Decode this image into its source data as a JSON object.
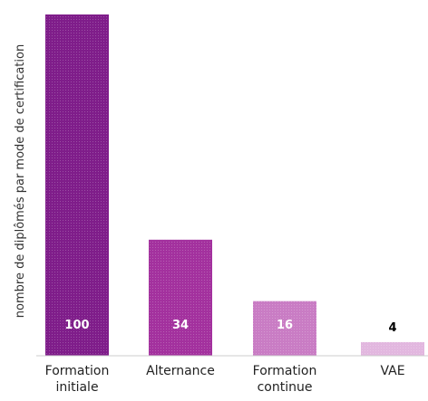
{
  "chart_data": {
    "type": "bar",
    "ylabel": "nombre de diplômés par mode de certification",
    "categories": [
      [
        "Formation",
        "initiale"
      ],
      [
        "Alternance"
      ],
      [
        "Formation",
        "continue"
      ],
      [
        "VAE"
      ]
    ],
    "values": [
      100,
      34,
      16,
      4
    ],
    "value_labels": [
      "100",
      "34",
      "16",
      "4"
    ],
    "ylim": [
      0,
      100
    ],
    "grid": false,
    "bar_colors": [
      "#7f1d8a",
      "#a3319e",
      "#c97cc4",
      "#e2b7df"
    ],
    "value_label_colors": [
      "#ffffff",
      "#ffffff",
      "#ffffff",
      "#000000"
    ]
  }
}
